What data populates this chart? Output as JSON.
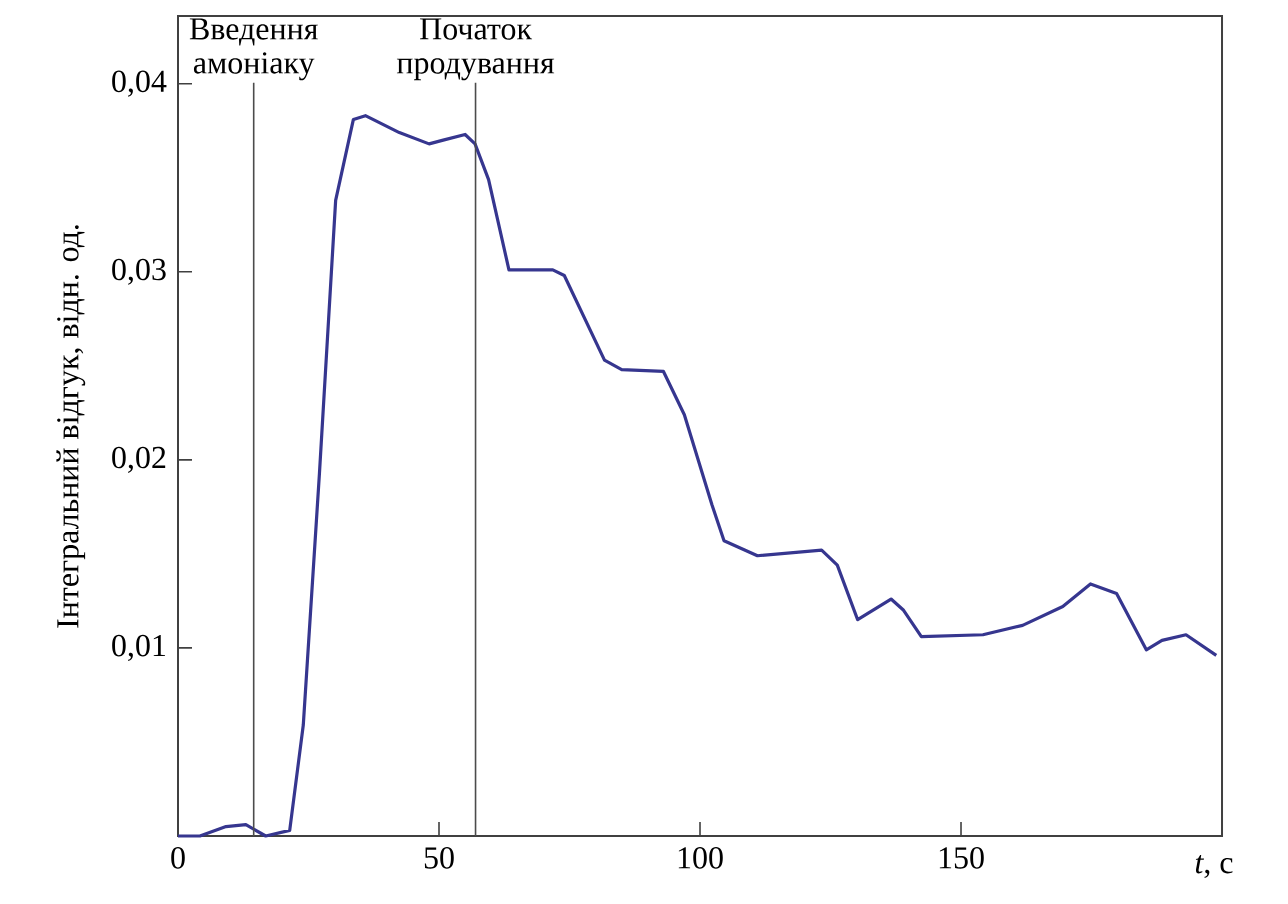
{
  "chart_data": {
    "type": "line",
    "xlabel": "*t*, с",
    "ylabel": "Інтегральний відгук, відн. од.",
    "xlim": [
      0,
      200
    ],
    "ylim": [
      0,
      0.0436
    ],
    "xticks": [
      0,
      50,
      100,
      150
    ],
    "yticks": [
      {
        "value": 0.01,
        "label": "0,01"
      },
      {
        "value": 0.02,
        "label": "0,02"
      },
      {
        "value": 0.03,
        "label": "0,03"
      },
      {
        "value": 0.04,
        "label": "0,04"
      }
    ],
    "ref_lines": [
      {
        "axis": "x",
        "value": 14.5,
        "label": "Введення амоніаку"
      },
      {
        "axis": "x",
        "value": 57,
        "label": "Початок продування"
      }
    ],
    "series": [
      {
        "color": "#36368f",
        "x": [
          0,
          4.2,
          9.2,
          13,
          16.8,
          21.4,
          24,
          27.1,
          30.2,
          33.6,
          35.9,
          42.4,
          48.1,
          50.8,
          55,
          56.9,
          59.5,
          63.4,
          71.8,
          74,
          81.7,
          85,
          93,
          97,
          102.3,
          104.6,
          111,
          123.3,
          126.3,
          130.2,
          136.6,
          139,
          142.4,
          154.2,
          161.8,
          169.5,
          174.8,
          179.8,
          185.5,
          188.5,
          193.1,
          198.9
        ],
        "values": [
          0,
          0,
          0.0005,
          0.0006,
          0,
          0.0003,
          0.0059,
          0.0193,
          0.0338,
          0.0381,
          0.0383,
          0.0374,
          0.0368,
          0.037,
          0.0373,
          0.0368,
          0.0349,
          0.0301,
          0.0301,
          0.0298,
          0.0253,
          0.0248,
          0.0247,
          0.0224,
          0.0176,
          0.0157,
          0.0149,
          0.0152,
          0.0144,
          0.0115,
          0.0126,
          0.012,
          0.0106,
          0.0107,
          0.0112,
          0.0122,
          0.0134,
          0.0129,
          0.0099,
          0.0104,
          0.0107,
          0.0096
        ]
      }
    ]
  }
}
